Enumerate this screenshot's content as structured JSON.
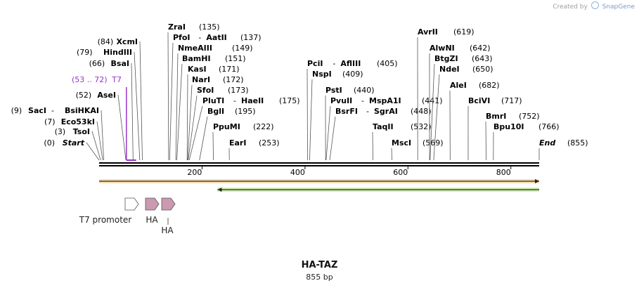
{
  "credit": {
    "prefix": "Created by",
    "brand": "SnapGene"
  },
  "construct": {
    "name": "HA-TAZ",
    "length": "855 bp"
  },
  "sequence": {
    "length_bp": 855,
    "ticks": [
      "200",
      "400",
      "600",
      "800"
    ]
  },
  "sites": [
    {
      "pos": "(0)",
      "name": "Start",
      "bp": 0,
      "style": "italic-bold"
    },
    {
      "pos": "(3)",
      "name": "TsoI",
      "bp": 3
    },
    {
      "pos": "(7)",
      "name": "Eco53kI",
      "bp": 7
    },
    {
      "pos": "(9)",
      "name": "SacI",
      "name2": "BsiHKAI",
      "bp": 9
    },
    {
      "pos": "(52)",
      "name": "AseI",
      "bp": 52
    },
    {
      "pos": "(53 .. 72)",
      "name": "T7",
      "bp": 53,
      "bp_end": 72,
      "style": "feature"
    },
    {
      "pos": "(66)",
      "name": "BsaI",
      "bp": 66
    },
    {
      "pos": "(79)",
      "name": "HindIII",
      "bp": 79
    },
    {
      "pos": "(84)",
      "name": "XcmI",
      "bp": 84
    },
    {
      "name": "ZraI",
      "pos": "(135)",
      "bp": 135
    },
    {
      "name": "PfoI",
      "name2": "AatII",
      "pos": "(137)",
      "bp": 137
    },
    {
      "name": "NmeAIII",
      "pos": "(149)",
      "bp": 149
    },
    {
      "name": "BamHI",
      "pos": "(151)",
      "bp": 151
    },
    {
      "name": "KasI",
      "pos": "(171)",
      "bp": 171
    },
    {
      "name": "NarI",
      "pos": "(172)",
      "bp": 172
    },
    {
      "name": "SfoI",
      "pos": "(173)",
      "bp": 173
    },
    {
      "name": "PluTI",
      "name2": "HaeII",
      "pos": "(175)",
      "bp": 175
    },
    {
      "name": "BglI",
      "pos": "(195)",
      "bp": 195
    },
    {
      "name": "PpuMI",
      "pos": "(222)",
      "bp": 222
    },
    {
      "name": "EarI",
      "pos": "(253)",
      "bp": 253
    },
    {
      "name": "PciI",
      "name2": "AflIII",
      "pos": "(405)",
      "bp": 405
    },
    {
      "name": "NspI",
      "pos": "(409)",
      "bp": 409
    },
    {
      "name": "PstI",
      "pos": "(440)",
      "bp": 440
    },
    {
      "name": "PvuII",
      "name2": "MspA1I",
      "pos": "(441)",
      "bp": 441
    },
    {
      "name": "BsrFI",
      "name2": "SgrAI",
      "pos": "(448)",
      "bp": 448
    },
    {
      "name": "TaqII",
      "pos": "(532)",
      "bp": 532
    },
    {
      "name": "MscI",
      "pos": "(569)",
      "bp": 569
    },
    {
      "name": "AvrII",
      "pos": "(619)",
      "bp": 619
    },
    {
      "name": "AlwNI",
      "pos": "(642)",
      "bp": 642
    },
    {
      "name": "BtgZI",
      "pos": "(643)",
      "bp": 643
    },
    {
      "name": "NdeI",
      "pos": "(650)",
      "bp": 650
    },
    {
      "name": "AleI",
      "pos": "(682)",
      "bp": 682
    },
    {
      "name": "BciVI",
      "pos": "(717)",
      "bp": 717
    },
    {
      "name": "BmrI",
      "pos": "(752)",
      "bp": 752
    },
    {
      "name": "Bpu10I",
      "pos": "(766)",
      "bp": 766
    },
    {
      "name": "End",
      "pos": "(855)",
      "bp": 855,
      "style": "italic-bold"
    }
  ],
  "features": [
    {
      "name": "T7 promoter",
      "start_bp": 53,
      "end_bp": 72,
      "color": "#ffffff",
      "direction": "forward"
    },
    {
      "name": "HA",
      "start_bp": 91,
      "end_bp": 117,
      "color": "#cc99b2",
      "direction": "forward"
    },
    {
      "name": "HA",
      "start_bp": 121,
      "end_bp": 147,
      "color": "#cc99b2",
      "direction": "forward"
    }
  ],
  "orfs": [
    {
      "start_bp": 0,
      "end_bp": 855,
      "direction": "forward",
      "color": "#f5a623"
    },
    {
      "start_bp": 230,
      "end_bp": 855,
      "direction": "reverse",
      "color": "#7ed321"
    }
  ],
  "colors": {
    "feature_label": "#9933cc",
    "line": "#000000"
  }
}
